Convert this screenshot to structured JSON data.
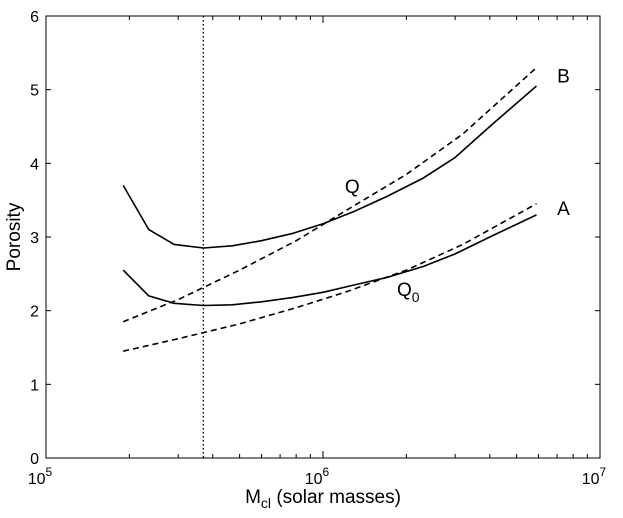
{
  "chart_data": {
    "type": "line",
    "xscale": "log",
    "xlim": [
      100000,
      10000000
    ],
    "ylim": [
      0,
      6
    ],
    "xticks": [
      {
        "value": 100000,
        "base": "10",
        "exp": "5"
      },
      {
        "value": 1000000,
        "base": "10",
        "exp": "6"
      },
      {
        "value": 10000000,
        "base": "10",
        "exp": "7"
      }
    ],
    "yticks": [
      {
        "value": 0,
        "label": "0"
      },
      {
        "value": 1,
        "label": "1"
      },
      {
        "value": 2,
        "label": "2"
      },
      {
        "value": 3,
        "label": "3"
      },
      {
        "value": 4,
        "label": "4"
      },
      {
        "value": 5,
        "label": "5"
      },
      {
        "value": 6,
        "label": "6"
      }
    ],
    "xlabel": {
      "main": "M",
      "sub": "cl",
      "rest": " (solar masses)"
    },
    "ylabel": "Porosity",
    "grid": false,
    "vline": {
      "x": 370000,
      "style": "dotted"
    },
    "series": [
      {
        "id": "Q",
        "style": "solid",
        "x": [
          190000,
          235000,
          290000,
          370000,
          470000,
          600000,
          780000,
          1000000,
          1300000,
          1700000,
          2300000,
          3000000,
          4000000,
          5900000
        ],
        "y": [
          3.7,
          3.1,
          2.9,
          2.85,
          2.88,
          2.95,
          3.05,
          3.18,
          3.35,
          3.55,
          3.8,
          4.08,
          4.5,
          5.05
        ]
      },
      {
        "id": "Q0",
        "style": "solid",
        "x": [
          190000,
          235000,
          290000,
          370000,
          470000,
          600000,
          780000,
          1000000,
          1300000,
          1700000,
          2300000,
          3000000,
          4000000,
          5900000
        ],
        "y": [
          2.55,
          2.2,
          2.1,
          2.07,
          2.08,
          2.12,
          2.18,
          2.25,
          2.35,
          2.45,
          2.6,
          2.77,
          3.0,
          3.3
        ]
      },
      {
        "id": "B",
        "style": "dashed",
        "x": [
          190000,
          300000,
          500000,
          800000,
          1200000,
          2000000,
          3200000,
          5900000
        ],
        "y": [
          1.85,
          2.15,
          2.55,
          2.95,
          3.35,
          3.85,
          4.4,
          5.3
        ]
      },
      {
        "id": "A",
        "style": "dashed",
        "x": [
          190000,
          300000,
          500000,
          800000,
          1200000,
          2000000,
          3200000,
          5900000
        ],
        "y": [
          1.45,
          1.62,
          1.82,
          2.04,
          2.25,
          2.55,
          2.9,
          3.45
        ]
      }
    ],
    "annotations": [
      {
        "id": "B",
        "text": "B",
        "sub": "",
        "x": 7000000,
        "y": 5.1
      },
      {
        "id": "A",
        "text": "A",
        "sub": "",
        "x": 7000000,
        "y": 3.3
      },
      {
        "id": "Q",
        "text": "Q",
        "sub": "",
        "x": 1200000,
        "y": 3.6
      },
      {
        "id": "Q0",
        "text": "Q",
        "sub": "0",
        "x": 1850000,
        "y": 2.2
      }
    ]
  }
}
